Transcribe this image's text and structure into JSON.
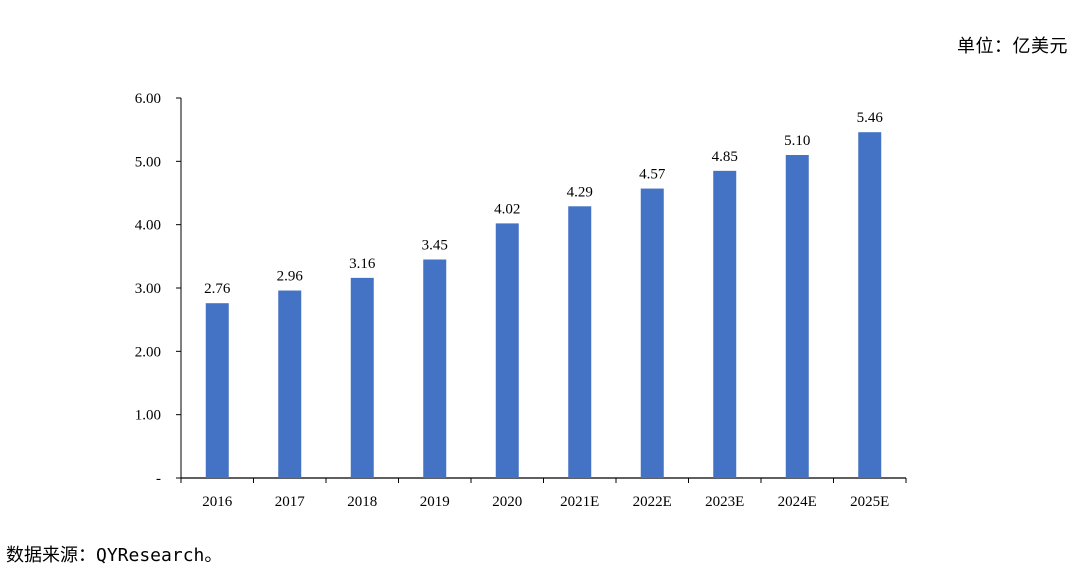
{
  "unit_label": "单位：亿美元",
  "source_label": "数据来源：QYResearch。",
  "colors": {
    "bar": "#4472C4",
    "axis": "#000000"
  },
  "chart_data": {
    "type": "bar",
    "title": "",
    "xlabel": "",
    "ylabel": "",
    "ylim": [
      0,
      6
    ],
    "grid": false,
    "legend": "none",
    "y_ticks": [
      0,
      1,
      2,
      3,
      4,
      5,
      6
    ],
    "y_tick_labels": [
      "-",
      "1.00",
      "2.00",
      "3.00",
      "4.00",
      "5.00",
      "6.00"
    ],
    "categories": [
      "2016",
      "2017",
      "2018",
      "2019",
      "2020",
      "2021E",
      "2022E",
      "2023E",
      "2024E",
      "2025E"
    ],
    "values": [
      2.76,
      2.96,
      3.16,
      3.45,
      4.02,
      4.29,
      4.57,
      4.85,
      5.1,
      5.46
    ],
    "data_labels": [
      "2.76",
      "2.96",
      "3.16",
      "3.45",
      "4.02",
      "4.29",
      "4.57",
      "4.85",
      "5.10",
      "5.46"
    ]
  }
}
